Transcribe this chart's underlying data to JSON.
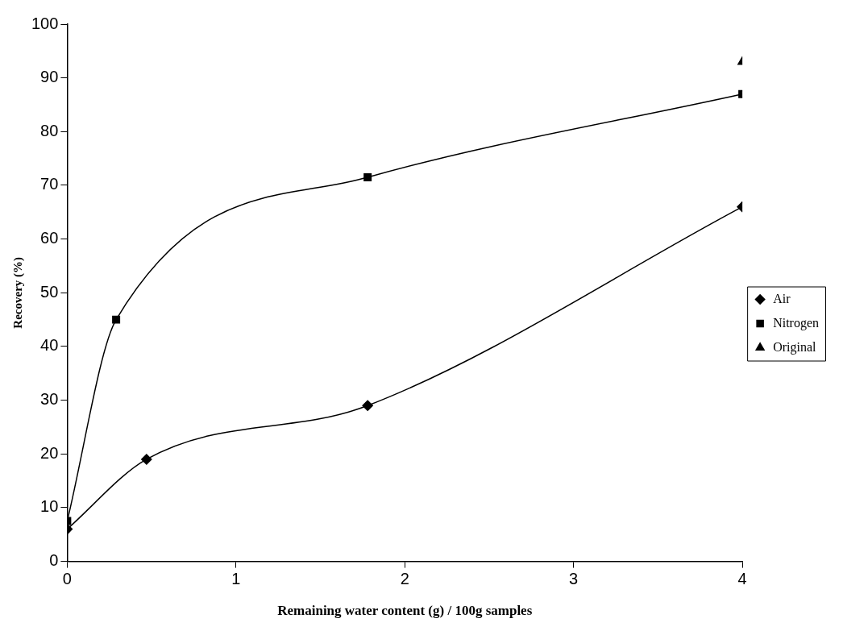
{
  "chart_data": {
    "type": "line",
    "xlabel": "Remaining water content (g) / 100g samples",
    "ylabel": "Recovery (%)",
    "xlim": [
      0,
      4
    ],
    "xticks": [
      0,
      1,
      2,
      3,
      4
    ],
    "ylim": [
      0,
      100
    ],
    "yticks": [
      0,
      10,
      20,
      30,
      40,
      50,
      60,
      70,
      80,
      90,
      100
    ],
    "grid": false,
    "legend": "right",
    "series": [
      {
        "name": "Air",
        "color": "#000000",
        "marker": "diamond",
        "x": [
          0,
          0.47,
          1.78,
          4
        ],
        "values": [
          6,
          19,
          29,
          66
        ]
      },
      {
        "name": "Nitrogen",
        "color": "#000000",
        "marker": "square",
        "x": [
          0,
          0.29,
          1.78,
          4
        ],
        "values": [
          7.5,
          45,
          71.5,
          87
        ]
      },
      {
        "name": "Original",
        "color": "#000000",
        "marker": "triangle",
        "x": [
          4
        ],
        "values": [
          93
        ]
      }
    ]
  }
}
